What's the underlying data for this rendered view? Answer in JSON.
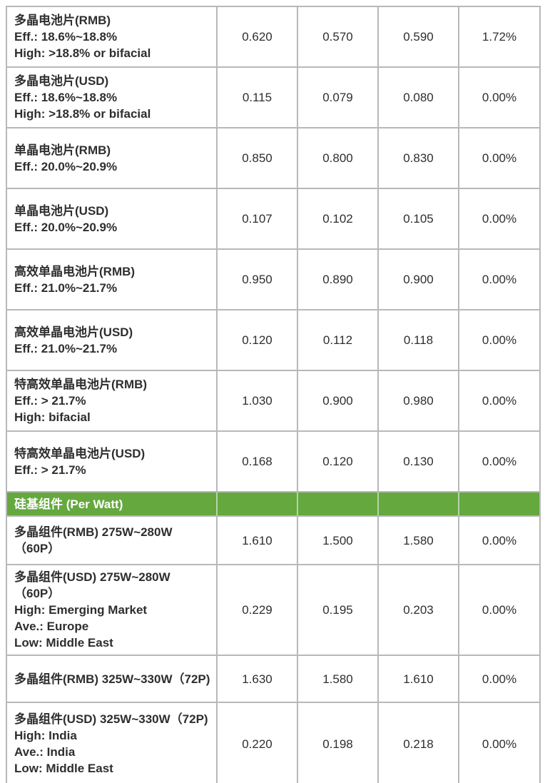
{
  "colors": {
    "section_green": "#64a83e",
    "section_text": "#ffffff",
    "border_gray": "#b8b8b8",
    "text": "#2e2e2e",
    "background": "#ffffff"
  },
  "table": {
    "rows": [
      {
        "type": "item",
        "label_lines": [
          "多晶电池片(RMB)",
          "Eff.: 18.6%~18.8%",
          "High: >18.8% or bifacial"
        ],
        "values": [
          "0.620",
          "0.570",
          "0.590",
          "1.72%"
        ]
      },
      {
        "type": "item",
        "label_lines": [
          "多晶电池片(USD)",
          "Eff.: 18.6%~18.8%",
          "High: >18.8% or bifacial"
        ],
        "values": [
          "0.115",
          "0.079",
          "0.080",
          "0.00%"
        ]
      },
      {
        "type": "item",
        "label_lines": [
          "单晶电池片(RMB)",
          "Eff.: 20.0%~20.9%"
        ],
        "values": [
          "0.850",
          "0.800",
          "0.830",
          "0.00%"
        ]
      },
      {
        "type": "item",
        "label_lines": [
          "单晶电池片(USD)",
          "Eff.: 20.0%~20.9%"
        ],
        "values": [
          "0.107",
          "0.102",
          "0.105",
          "0.00%"
        ]
      },
      {
        "type": "item",
        "label_lines": [
          "高效单晶电池片(RMB)",
          "Eff.: 21.0%~21.7%"
        ],
        "values": [
          "0.950",
          "0.890",
          "0.900",
          "0.00%"
        ]
      },
      {
        "type": "item",
        "label_lines": [
          "高效单晶电池片(USD)",
          "Eff.: 21.0%~21.7%"
        ],
        "values": [
          "0.120",
          "0.112",
          "0.118",
          "0.00%"
        ]
      },
      {
        "type": "item",
        "label_lines": [
          "特高效单晶电池片(RMB)",
          "Eff.: > 21.7%",
          "High: bifacial"
        ],
        "values": [
          "1.030",
          "0.900",
          "0.980",
          "0.00%"
        ]
      },
      {
        "type": "item",
        "label_lines": [
          "特高效单晶电池片(USD)",
          "Eff.: > 21.7%"
        ],
        "values": [
          "0.168",
          "0.120",
          "0.130",
          "0.00%"
        ]
      },
      {
        "type": "section",
        "label_lines": [
          "硅基组件 (Per Watt)"
        ],
        "values": [
          "",
          "",
          "",
          ""
        ]
      },
      {
        "type": "item",
        "label_lines": [
          "多晶组件(RMB) 275W~280W",
          "（60P）"
        ],
        "values": [
          "1.610",
          "1.500",
          "1.580",
          "0.00%"
        ]
      },
      {
        "type": "item",
        "label_lines": [
          "多晶组件(USD) 275W~280W",
          "（60P）",
          "High: Emerging Market",
          "Ave.: Europe",
          "Low: Middle East"
        ],
        "values": [
          "0.229",
          "0.195",
          "0.203",
          "0.00%"
        ]
      },
      {
        "type": "item",
        "label_lines": [
          "多晶组件(RMB) 325W~330W（72P)"
        ],
        "values": [
          "1.630",
          "1.580",
          "1.610",
          "0.00%"
        ]
      },
      {
        "type": "item",
        "label_lines": [
          "多晶组件(USD) 325W~330W（72P)",
          "High: India",
          "Ave.: India",
          "Low: Middle East"
        ],
        "values": [
          "0.220",
          "0.198",
          "0.218",
          "0.00%"
        ]
      }
    ]
  }
}
